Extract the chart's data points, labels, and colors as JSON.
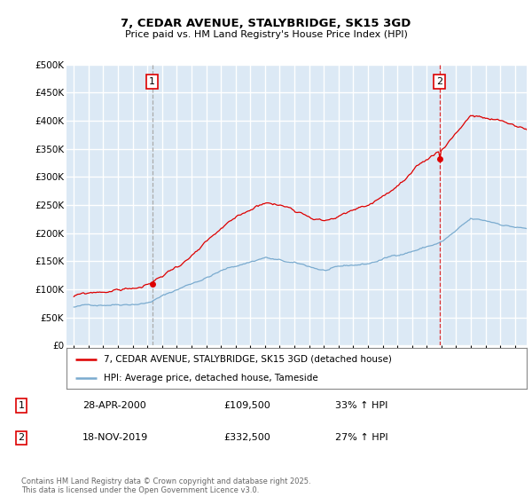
{
  "title1": "7, CEDAR AVENUE, STALYBRIDGE, SK15 3GD",
  "title2": "Price paid vs. HM Land Registry's House Price Index (HPI)",
  "legend_line1": "7, CEDAR AVENUE, STALYBRIDGE, SK15 3GD (detached house)",
  "legend_line2": "HPI: Average price, detached house, Tameside",
  "annotation1_date": "28-APR-2000",
  "annotation1_price": "£109,500",
  "annotation1_hpi": "33% ↑ HPI",
  "annotation2_date": "18-NOV-2019",
  "annotation2_price": "£332,500",
  "annotation2_hpi": "27% ↑ HPI",
  "footer": "Contains HM Land Registry data © Crown copyright and database right 2025.\nThis data is licensed under the Open Government Licence v3.0.",
  "sale1_year": 2000.32,
  "sale1_value": 109500,
  "sale2_year": 2019.88,
  "sale2_value": 332500,
  "red_color": "#dd0000",
  "blue_color": "#7aabcf",
  "plot_bg": "#dce9f5",
  "grid_color": "#ffffff",
  "ylim_max": 500000,
  "ylim_min": 0,
  "xlim_min": 1994.5,
  "xlim_max": 2025.8
}
